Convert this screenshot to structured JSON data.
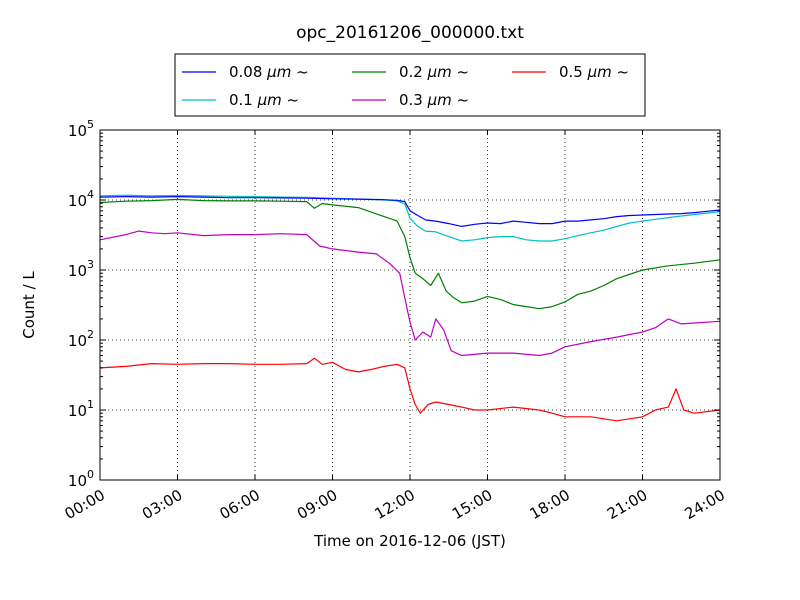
{
  "chart_data": {
    "type": "line",
    "title": "opc_20161206_000000.txt",
    "xlabel": "Time on 2016-12-06 (JST)",
    "ylabel": "Count / L",
    "x_unit": "hours",
    "xlim": [
      0,
      24
    ],
    "ylim": [
      1,
      100000
    ],
    "yscale": "log",
    "grid": true,
    "legend": "top-center, outside plot, 3 columns",
    "xticks": [
      {
        "value": 0,
        "label": "00:00"
      },
      {
        "value": 3,
        "label": "03:00"
      },
      {
        "value": 6,
        "label": "06:00"
      },
      {
        "value": 9,
        "label": "09:00"
      },
      {
        "value": 12,
        "label": "12:00"
      },
      {
        "value": 15,
        "label": "15:00"
      },
      {
        "value": 18,
        "label": "18:00"
      },
      {
        "value": 21,
        "label": "21:00"
      },
      {
        "value": 24,
        "label": "24:00"
      }
    ],
    "yticks": [
      {
        "value": 1,
        "base": "10",
        "exp": "0"
      },
      {
        "value": 10,
        "base": "10",
        "exp": "1"
      },
      {
        "value": 100,
        "base": "10",
        "exp": "2"
      },
      {
        "value": 1000,
        "base": "10",
        "exp": "3"
      },
      {
        "value": 10000,
        "base": "10",
        "exp": "4"
      },
      {
        "value": 100000,
        "base": "10",
        "exp": "5"
      }
    ],
    "series": [
      {
        "name": "0.08 μm ~",
        "legend_size": "0.08 ",
        "legend_unit": "μm",
        "legend_suffix": " ~",
        "color": "#0000ff",
        "x": [
          0,
          1,
          2,
          3,
          4,
          5,
          6,
          7,
          8,
          9,
          10,
          11,
          11.5,
          11.8,
          12.0,
          12.3,
          12.6,
          13.0,
          13.5,
          14.0,
          14.5,
          15.0,
          15.5,
          16.0,
          16.5,
          17.0,
          17.5,
          18.0,
          18.5,
          19.0,
          19.5,
          20.0,
          20.5,
          21.0,
          21.5,
          22.0,
          22.5,
          23.0,
          23.5,
          24.0
        ],
        "y": [
          11000,
          11200,
          11000,
          11200,
          11000,
          10800,
          10800,
          10700,
          10600,
          10400,
          10300,
          10100,
          9900,
          9500,
          7000,
          6000,
          5200,
          5000,
          4600,
          4200,
          4500,
          4700,
          4600,
          5000,
          4800,
          4600,
          4600,
          5000,
          5000,
          5200,
          5400,
          5800,
          6000,
          6100,
          6200,
          6300,
          6400,
          6600,
          6900,
          7200
        ]
      },
      {
        "name": "0.1 μm ~",
        "legend_size": "0.1 ",
        "legend_unit": "μm",
        "legend_suffix": " ~",
        "color": "#00bfbf",
        "x": [
          0,
          1,
          2,
          3,
          4,
          5,
          6,
          7,
          8,
          9,
          10,
          11,
          11.5,
          11.8,
          12.0,
          12.3,
          12.6,
          13.0,
          13.5,
          14.0,
          14.5,
          15.0,
          15.5,
          16.0,
          16.5,
          17.0,
          17.5,
          18.0,
          18.5,
          19.0,
          19.5,
          20.0,
          20.5,
          21.0,
          21.5,
          22.0,
          22.5,
          23.0,
          23.5,
          24.0
        ],
        "y": [
          11500,
          11700,
          11500,
          11600,
          11500,
          11300,
          11200,
          11000,
          10900,
          10600,
          10300,
          10000,
          9700,
          8800,
          5500,
          4200,
          3600,
          3500,
          3000,
          2600,
          2700,
          2900,
          3000,
          3000,
          2700,
          2600,
          2600,
          2800,
          3100,
          3400,
          3700,
          4200,
          4700,
          5000,
          5300,
          5600,
          5900,
          6200,
          6500,
          6800
        ]
      },
      {
        "name": "0.2 μm ~",
        "legend_size": "0.2 ",
        "legend_unit": "μm",
        "legend_suffix": " ~",
        "color": "#008000",
        "x": [
          0,
          1,
          2,
          3,
          4,
          5,
          6,
          7,
          8,
          8.3,
          8.6,
          9,
          10,
          11,
          11.5,
          11.8,
          12.0,
          12.2,
          12.5,
          12.8,
          13.1,
          13.4,
          13.7,
          14.0,
          14.5,
          15.0,
          15.5,
          16.0,
          16.5,
          17.0,
          17.5,
          18.0,
          18.5,
          19.0,
          19.5,
          20.0,
          21.0,
          22.0,
          23.0,
          24.0
        ],
        "y": [
          9200,
          9600,
          9800,
          10200,
          9800,
          9700,
          9700,
          9600,
          9500,
          7600,
          8900,
          8500,
          7800,
          5800,
          5000,
          3000,
          1500,
          900,
          750,
          600,
          900,
          500,
          400,
          340,
          360,
          420,
          380,
          320,
          300,
          280,
          300,
          350,
          450,
          500,
          600,
          750,
          1000,
          1150,
          1250,
          1400
        ]
      },
      {
        "name": "0.3 μm ~",
        "legend_size": "0.3 ",
        "legend_unit": "μm",
        "legend_suffix": " ~",
        "color": "#bf00bf",
        "x": [
          0,
          1,
          1.5,
          2,
          2.5,
          3,
          4,
          5,
          6,
          7,
          8,
          8.5,
          9,
          10,
          10.7,
          11.2,
          11.6,
          11.8,
          12.0,
          12.2,
          12.5,
          12.8,
          13.0,
          13.3,
          13.6,
          14.0,
          15.0,
          16.0,
          17.0,
          17.5,
          18.0,
          19.0,
          20.0,
          21.0,
          21.5,
          22.0,
          22.5,
          23.0,
          24.0
        ],
        "y": [
          2700,
          3200,
          3600,
          3400,
          3300,
          3400,
          3100,
          3200,
          3200,
          3300,
          3200,
          2200,
          2000,
          1800,
          1700,
          1250,
          900,
          400,
          180,
          100,
          130,
          110,
          200,
          140,
          70,
          60,
          65,
          65,
          60,
          65,
          80,
          95,
          110,
          130,
          150,
          200,
          170,
          175,
          185
        ]
      },
      {
        "name": "0.5 μm ~",
        "legend_size": "0.5 ",
        "legend_unit": "μm",
        "legend_suffix": " ~",
        "color": "#ff0000",
        "x": [
          0,
          1,
          2,
          3,
          4,
          5,
          6,
          7,
          8,
          8.3,
          8.6,
          9,
          9.5,
          10,
          10.5,
          11,
          11.5,
          11.8,
          12.0,
          12.2,
          12.4,
          12.7,
          13.0,
          13.5,
          14.0,
          14.5,
          15.0,
          16.0,
          17.0,
          17.5,
          18.0,
          19.0,
          20.0,
          21.0,
          21.5,
          22.0,
          22.3,
          22.6,
          23.0,
          24.0
        ],
        "y": [
          40,
          42,
          46,
          45,
          46,
          46,
          45,
          45,
          46,
          55,
          45,
          48,
          38,
          35,
          38,
          42,
          45,
          40,
          20,
          12,
          9,
          12,
          13,
          12,
          11,
          10,
          10,
          11,
          10,
          9,
          8,
          8,
          7,
          8,
          10,
          11,
          20,
          10,
          9,
          10
        ]
      }
    ]
  }
}
